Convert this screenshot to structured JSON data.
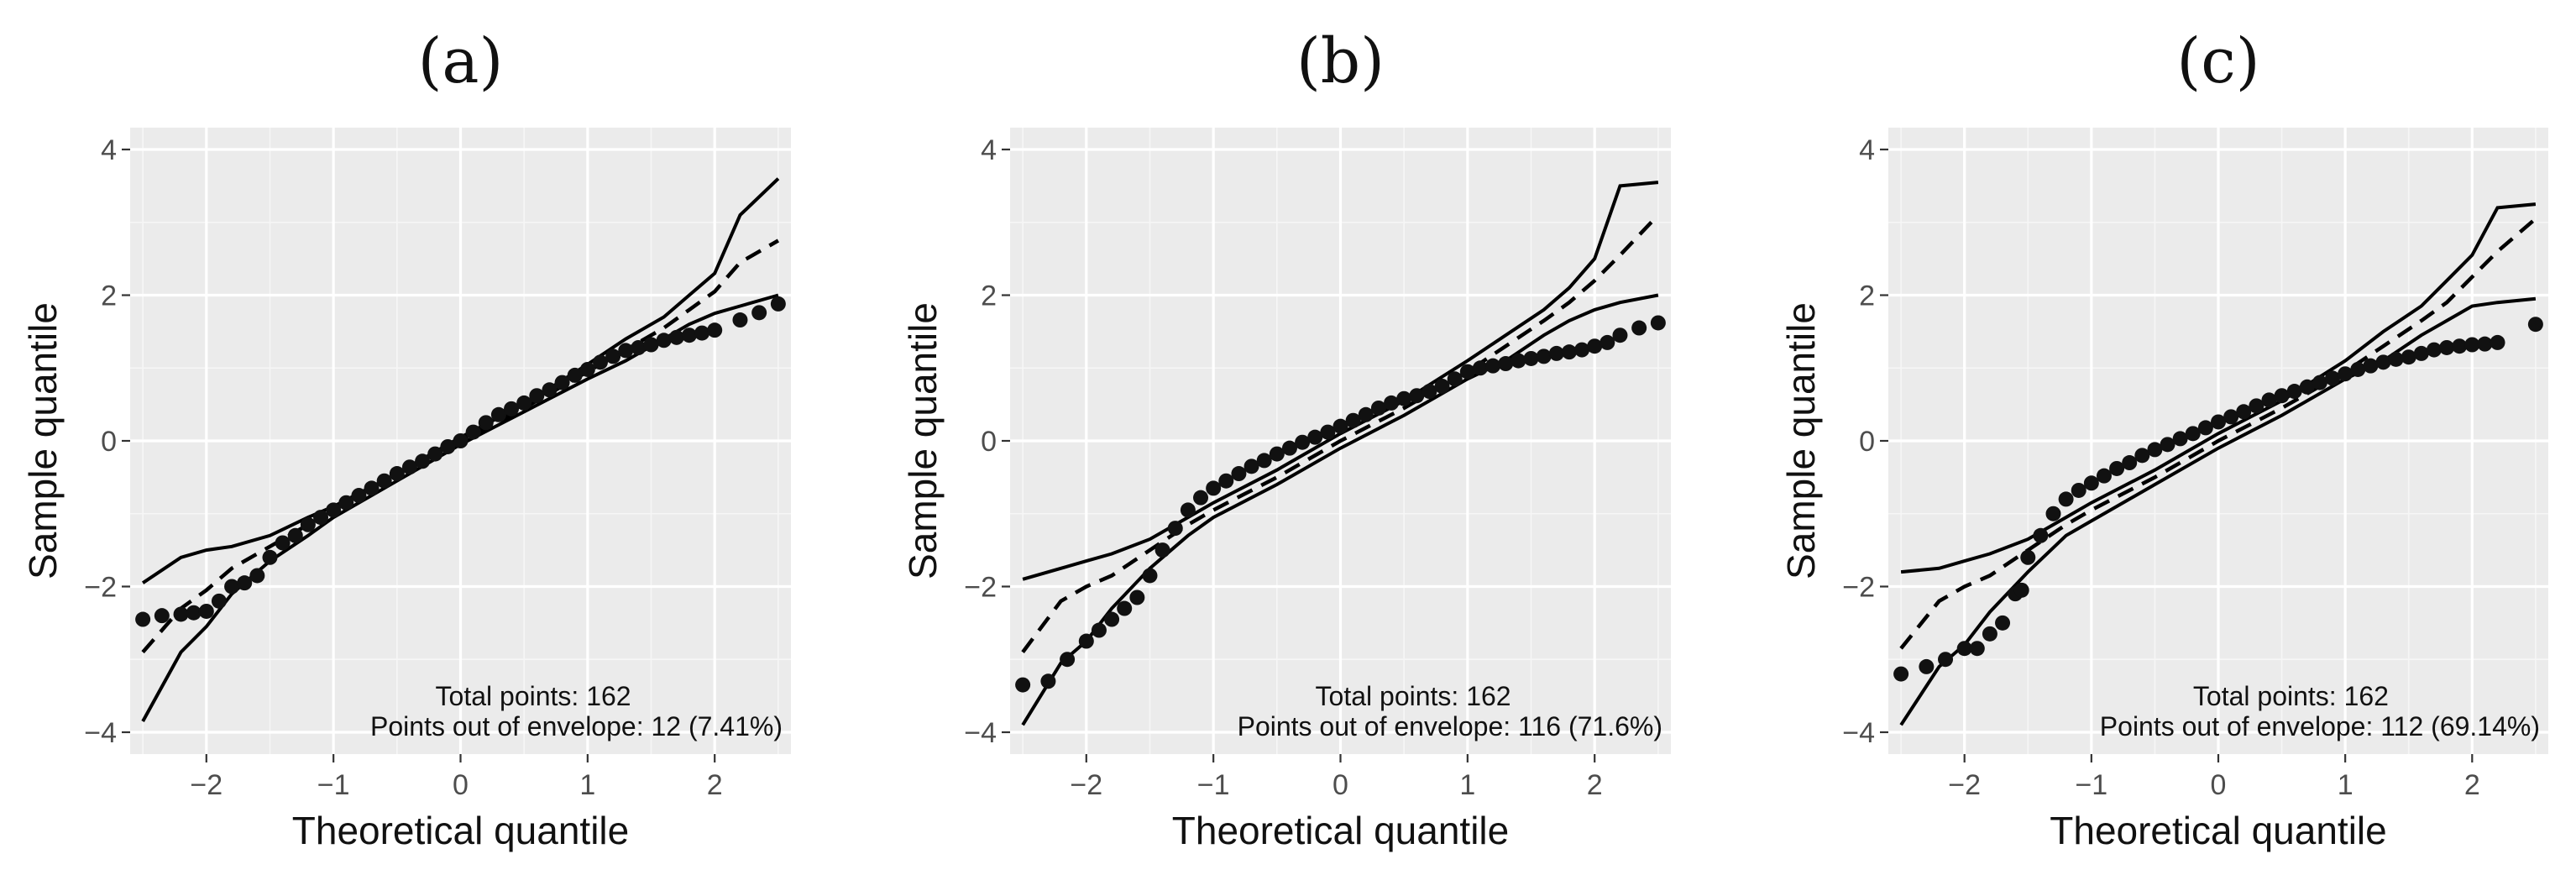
{
  "chart_data": [
    {
      "type": "scatter",
      "title": "(a)",
      "xlabel": "Theoretical quantile",
      "ylabel": "Sample quantile",
      "xlim": [
        -2.6,
        2.6
      ],
      "ylim": [
        -4.3,
        4.3
      ],
      "xticks": [
        -2,
        -1,
        0,
        1,
        2
      ],
      "yticks": [
        -4,
        -2,
        0,
        2,
        4
      ],
      "xtick_labels": [
        "−2",
        "−1",
        "0",
        "1",
        "2"
      ],
      "ytick_labels": [
        "−4",
        "−2",
        "0",
        "2",
        "4"
      ],
      "grid": true,
      "annotations": [
        "Total points: 162",
        "Points out of envelope: 12 (7.41%)"
      ],
      "envelope_x": [
        -2.5,
        -2.2,
        -2.0,
        -1.8,
        -1.5,
        -1.2,
        -1.0,
        -0.5,
        0.0,
        0.5,
        1.0,
        1.3,
        1.6,
        1.8,
        2.0,
        2.2,
        2.5
      ],
      "upper": [
        -1.95,
        -1.6,
        -1.5,
        -1.45,
        -1.3,
        -1.05,
        -0.9,
        -0.45,
        0.05,
        0.5,
        1.05,
        1.4,
        1.7,
        2.0,
        2.3,
        3.1,
        3.6
      ],
      "median": [
        -2.9,
        -2.3,
        -2.05,
        -1.75,
        -1.45,
        -1.15,
        -0.95,
        -0.45,
        0.0,
        0.45,
        0.95,
        1.25,
        1.55,
        1.8,
        2.05,
        2.45,
        2.75
      ],
      "lower": [
        -3.85,
        -2.9,
        -2.55,
        -2.1,
        -1.65,
        -1.3,
        -1.05,
        -0.55,
        -0.05,
        0.4,
        0.85,
        1.1,
        1.4,
        1.6,
        1.75,
        1.85,
        2.0
      ],
      "points_x": [
        -2.5,
        -2.35,
        -2.2,
        -2.1,
        -2.0,
        -1.9,
        -1.8,
        -1.7,
        -1.6,
        -1.5,
        -1.4,
        -1.3,
        -1.2,
        -1.1,
        -1.0,
        -0.9,
        -0.8,
        -0.7,
        -0.6,
        -0.5,
        -0.4,
        -0.3,
        -0.2,
        -0.1,
        0.0,
        0.1,
        0.2,
        0.3,
        0.4,
        0.5,
        0.6,
        0.7,
        0.8,
        0.9,
        1.0,
        1.1,
        1.2,
        1.3,
        1.4,
        1.5,
        1.6,
        1.7,
        1.8,
        1.9,
        2.0,
        2.2,
        2.35,
        2.5
      ],
      "points_y": [
        -2.45,
        -2.4,
        -2.38,
        -2.36,
        -2.34,
        -2.2,
        -2.0,
        -1.95,
        -1.85,
        -1.6,
        -1.4,
        -1.3,
        -1.15,
        -1.05,
        -0.95,
        -0.85,
        -0.75,
        -0.65,
        -0.55,
        -0.45,
        -0.36,
        -0.28,
        -0.18,
        -0.08,
        0.0,
        0.12,
        0.25,
        0.36,
        0.44,
        0.52,
        0.62,
        0.7,
        0.8,
        0.9,
        0.98,
        1.08,
        1.16,
        1.24,
        1.28,
        1.32,
        1.38,
        1.42,
        1.45,
        1.48,
        1.52,
        1.66,
        1.76,
        1.88
      ]
    },
    {
      "type": "scatter",
      "title": "(b)",
      "xlabel": "Theoretical quantile",
      "ylabel": "Sample quantile",
      "xlim": [
        -2.6,
        2.6
      ],
      "ylim": [
        -4.3,
        4.3
      ],
      "xticks": [
        -2,
        -1,
        0,
        1,
        2
      ],
      "yticks": [
        -4,
        -2,
        0,
        2,
        4
      ],
      "xtick_labels": [
        "−2",
        "−1",
        "0",
        "1",
        "2"
      ],
      "ytick_labels": [
        "−4",
        "−2",
        "0",
        "2",
        "4"
      ],
      "grid": true,
      "annotations": [
        "Total points: 162",
        "Points out of envelope: 116 (71.6%)"
      ],
      "envelope_x": [
        -2.5,
        -2.2,
        -2.0,
        -1.8,
        -1.5,
        -1.2,
        -1.0,
        -0.5,
        0.0,
        0.5,
        1.0,
        1.3,
        1.6,
        1.8,
        2.0,
        2.2,
        2.5
      ],
      "upper": [
        -1.9,
        -1.75,
        -1.65,
        -1.55,
        -1.35,
        -1.05,
        -0.85,
        -0.4,
        0.1,
        0.55,
        1.1,
        1.45,
        1.8,
        2.1,
        2.5,
        3.5,
        3.55
      ],
      "median": [
        -2.9,
        -2.2,
        -2.0,
        -1.85,
        -1.5,
        -1.15,
        -0.95,
        -0.5,
        0.0,
        0.45,
        0.95,
        1.3,
        1.65,
        1.9,
        2.2,
        2.55,
        3.1
      ],
      "lower": [
        -3.9,
        -3.05,
        -2.75,
        -2.3,
        -1.75,
        -1.3,
        -1.05,
        -0.6,
        -0.1,
        0.35,
        0.85,
        1.1,
        1.45,
        1.65,
        1.8,
        1.9,
        2.0
      ],
      "points_x": [
        -2.5,
        -2.3,
        -2.15,
        -2.0,
        -1.9,
        -1.8,
        -1.7,
        -1.6,
        -1.5,
        -1.4,
        -1.3,
        -1.2,
        -1.1,
        -1.0,
        -0.9,
        -0.8,
        -0.7,
        -0.6,
        -0.5,
        -0.4,
        -0.3,
        -0.2,
        -0.1,
        0.0,
        0.1,
        0.2,
        0.3,
        0.4,
        0.5,
        0.6,
        0.7,
        0.8,
        0.9,
        1.0,
        1.1,
        1.2,
        1.3,
        1.4,
        1.5,
        1.6,
        1.7,
        1.8,
        1.9,
        2.0,
        2.1,
        2.2,
        2.35,
        2.5
      ],
      "points_y": [
        -3.35,
        -3.3,
        -3.0,
        -2.75,
        -2.6,
        -2.45,
        -2.3,
        -2.15,
        -1.85,
        -1.5,
        -1.2,
        -0.95,
        -0.78,
        -0.65,
        -0.55,
        -0.45,
        -0.35,
        -0.27,
        -0.18,
        -0.1,
        -0.02,
        0.05,
        0.12,
        0.2,
        0.28,
        0.36,
        0.45,
        0.52,
        0.58,
        0.62,
        0.68,
        0.75,
        0.85,
        0.95,
        1.0,
        1.03,
        1.06,
        1.1,
        1.13,
        1.16,
        1.2,
        1.22,
        1.25,
        1.3,
        1.35,
        1.45,
        1.55,
        1.62
      ]
    },
    {
      "type": "scatter",
      "title": "(c)",
      "xlabel": "Theoretical quantile",
      "ylabel": "Sample quantile",
      "xlim": [
        -2.6,
        2.6
      ],
      "ylim": [
        -4.3,
        4.3
      ],
      "xticks": [
        -2,
        -1,
        0,
        1,
        2
      ],
      "yticks": [
        -4,
        -2,
        0,
        2,
        4
      ],
      "xtick_labels": [
        "−2",
        "−1",
        "0",
        "1",
        "2"
      ],
      "ytick_labels": [
        "−4",
        "−2",
        "0",
        "2",
        "4"
      ],
      "grid": true,
      "annotations": [
        "Total points: 162",
        "Points out of envelope: 112 (69.14%)"
      ],
      "envelope_x": [
        -2.5,
        -2.2,
        -2.0,
        -1.8,
        -1.5,
        -1.2,
        -1.0,
        -0.5,
        0.0,
        0.5,
        1.0,
        1.3,
        1.6,
        1.8,
        2.0,
        2.2,
        2.5
      ],
      "upper": [
        -1.8,
        -1.75,
        -1.65,
        -1.55,
        -1.35,
        -1.05,
        -0.85,
        -0.4,
        0.1,
        0.55,
        1.1,
        1.5,
        1.85,
        2.2,
        2.55,
        3.2,
        3.25
      ],
      "median": [
        -2.85,
        -2.2,
        -2.0,
        -1.85,
        -1.5,
        -1.15,
        -0.95,
        -0.5,
        0.0,
        0.45,
        0.95,
        1.3,
        1.65,
        1.9,
        2.25,
        2.6,
        3.05
      ],
      "lower": [
        -3.9,
        -3.1,
        -2.8,
        -2.35,
        -1.8,
        -1.3,
        -1.1,
        -0.6,
        -0.1,
        0.35,
        0.85,
        1.1,
        1.45,
        1.65,
        1.85,
        1.9,
        1.95
      ],
      "points_x": [
        -2.5,
        -2.3,
        -2.15,
        -2.0,
        -1.9,
        -1.8,
        -1.7,
        -1.6,
        -1.55,
        -1.5,
        -1.4,
        -1.3,
        -1.2,
        -1.1,
        -1.0,
        -0.9,
        -0.8,
        -0.7,
        -0.6,
        -0.5,
        -0.4,
        -0.3,
        -0.2,
        -0.1,
        0.0,
        0.1,
        0.2,
        0.3,
        0.4,
        0.5,
        0.6,
        0.7,
        0.8,
        0.9,
        1.0,
        1.1,
        1.2,
        1.3,
        1.4,
        1.5,
        1.6,
        1.7,
        1.8,
        1.9,
        2.0,
        2.1,
        2.2,
        2.5
      ],
      "points_y": [
        -3.2,
        -3.1,
        -3.0,
        -2.85,
        -2.85,
        -2.65,
        -2.5,
        -2.1,
        -2.05,
        -1.6,
        -1.3,
        -1.0,
        -0.8,
        -0.68,
        -0.58,
        -0.48,
        -0.38,
        -0.3,
        -0.2,
        -0.12,
        -0.05,
        0.03,
        0.1,
        0.18,
        0.26,
        0.33,
        0.4,
        0.48,
        0.56,
        0.62,
        0.68,
        0.74,
        0.8,
        0.86,
        0.92,
        0.98,
        1.03,
        1.08,
        1.12,
        1.15,
        1.2,
        1.25,
        1.28,
        1.3,
        1.32,
        1.33,
        1.35,
        1.6
      ]
    }
  ]
}
